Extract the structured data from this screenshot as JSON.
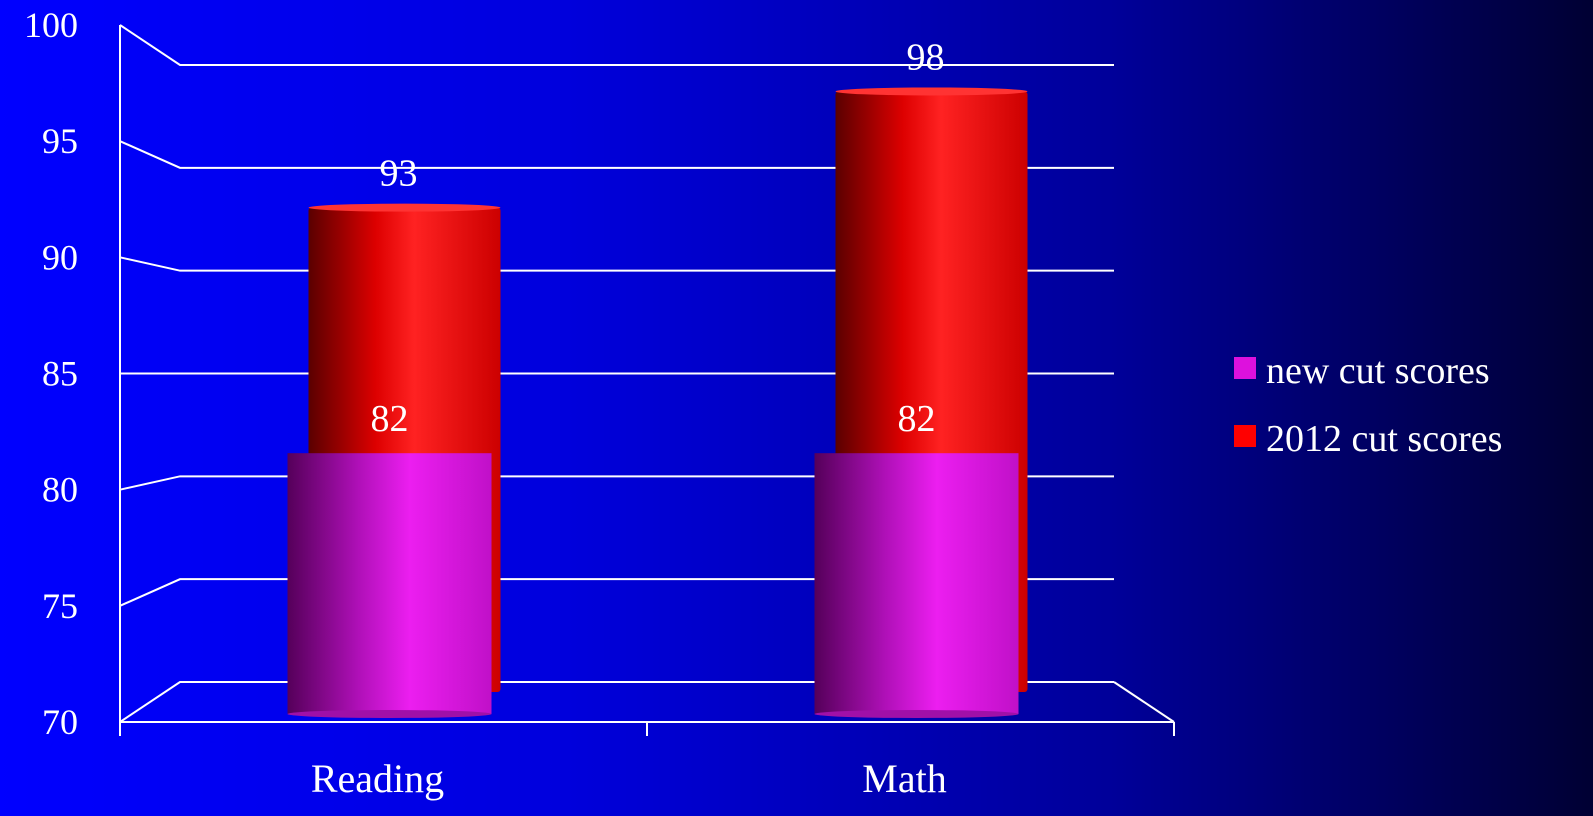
{
  "chart_data": {
    "type": "bar",
    "title": "",
    "xlabel": "",
    "ylabel": "",
    "categories": [
      "Reading",
      "Math"
    ],
    "ylim": [
      70,
      100
    ],
    "yticks": [
      70,
      75,
      80,
      85,
      90,
      95,
      100
    ],
    "grid": true,
    "legend_position": "right",
    "series": [
      {
        "name": "new cut scores",
        "values": [
          82,
          82
        ],
        "color": "#dd11dd"
      },
      {
        "name": "2012 cut scores",
        "values": [
          93,
          98
        ],
        "color": "#ff0000"
      }
    ]
  }
}
